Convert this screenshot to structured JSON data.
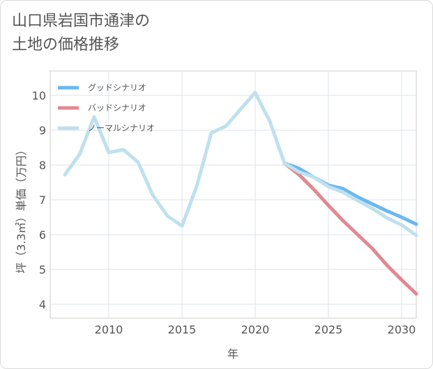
{
  "title": {
    "line1": "山口県岩国市通津の",
    "line2": "土地の価格推移"
  },
  "chart_data": {
    "type": "line",
    "xlabel": "年",
    "ylabel": "坪（3.3㎡）単価（万円）",
    "xlim": [
      2006,
      2031
    ],
    "ylim": [
      3.6,
      10.7
    ],
    "xticks": [
      2010,
      2015,
      2020,
      2025,
      2030
    ],
    "yticks": [
      4,
      5,
      6,
      7,
      8,
      9,
      10
    ],
    "grid": true,
    "legend_position": "top-left",
    "series": [
      {
        "name": "グッドシナリオ",
        "color": "#6ab8f0",
        "x": [
          2022,
          2023,
          2024,
          2025,
          2026,
          2027,
          2028,
          2029,
          2030,
          2031
        ],
        "y": [
          8.05,
          7.9,
          7.65,
          7.42,
          7.32,
          7.08,
          6.88,
          6.68,
          6.5,
          6.3
        ]
      },
      {
        "name": "バッドシナリオ",
        "color": "#e08890",
        "x": [
          2022,
          2023,
          2024,
          2025,
          2026,
          2027,
          2028,
          2029,
          2030,
          2031
        ],
        "y": [
          8.05,
          7.72,
          7.3,
          6.84,
          6.4,
          6.0,
          5.6,
          5.12,
          4.7,
          4.3
        ]
      },
      {
        "name": "ノーマルシナリオ",
        "color": "#bfe0ee",
        "x": [
          2007,
          2008,
          2009,
          2010,
          2011,
          2012,
          2013,
          2014,
          2015,
          2016,
          2017,
          2018,
          2019,
          2020,
          2021,
          2022,
          2023,
          2024,
          2025,
          2026,
          2027,
          2028,
          2029,
          2030,
          2031
        ],
        "y": [
          7.72,
          8.3,
          9.38,
          8.36,
          8.44,
          8.08,
          7.14,
          6.54,
          6.25,
          7.38,
          8.92,
          9.12,
          9.6,
          10.08,
          9.25,
          8.05,
          7.8,
          7.65,
          7.38,
          7.22,
          6.98,
          6.75,
          6.48,
          6.28,
          5.98
        ]
      }
    ]
  }
}
